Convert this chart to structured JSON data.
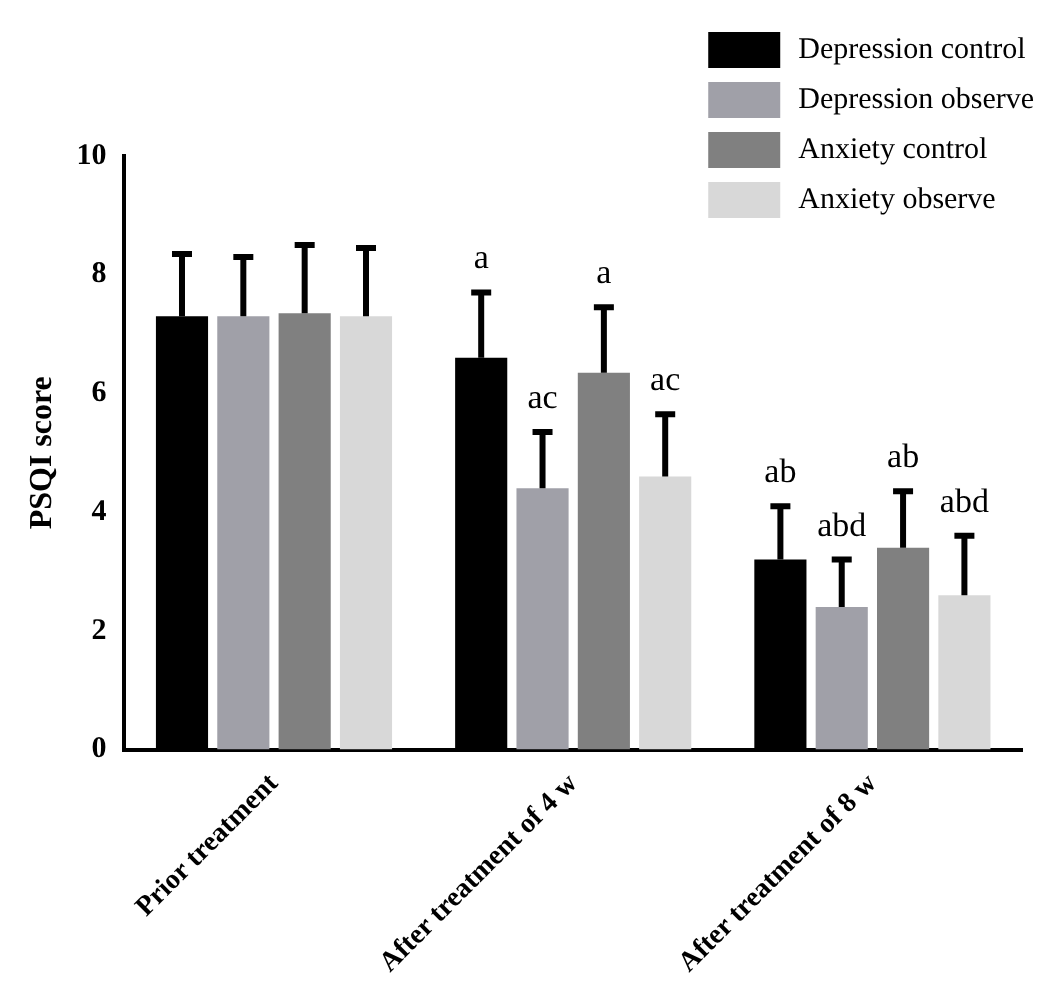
{
  "chart_data": {
    "type": "bar",
    "ylabel": "PSQI score",
    "categories": [
      "Prior treatment",
      "After treatment of 4 w",
      "After treatment of 8 w"
    ],
    "series": [
      {
        "name": "Depression control",
        "color": "#000000",
        "values": [
          7.3,
          6.6,
          3.2
        ],
        "errors": [
          [
            7.3,
            8.35
          ],
          [
            6.6,
            7.7
          ],
          [
            3.2,
            4.1
          ]
        ],
        "value_labels": [
          null,
          "a",
          "ab"
        ]
      },
      {
        "name": "Depression observe",
        "color": "#a0a0a8",
        "values": [
          7.3,
          4.4,
          2.4
        ],
        "errors": [
          [
            7.3,
            8.3
          ],
          [
            4.4,
            5.35
          ],
          [
            2.4,
            3.2
          ]
        ],
        "value_labels": [
          null,
          "ac",
          "abd"
        ]
      },
      {
        "name": "Anxiety control",
        "color": "#808080",
        "values": [
          7.35,
          6.35,
          3.4
        ],
        "errors": [
          [
            7.35,
            8.5
          ],
          [
            6.35,
            7.45
          ],
          [
            3.4,
            4.35
          ]
        ],
        "value_labels": [
          null,
          "a",
          "ab"
        ]
      },
      {
        "name": "Anxiety observe",
        "color": "#d8d8d8",
        "values": [
          7.3,
          4.6,
          2.6
        ],
        "errors": [
          [
            7.3,
            8.45
          ],
          [
            4.6,
            5.65
          ],
          [
            2.6,
            3.6
          ]
        ],
        "value_labels": [
          null,
          "ac",
          "abd"
        ]
      }
    ],
    "ylim": [
      0,
      10
    ],
    "yticks": [
      0,
      2,
      4,
      6,
      8,
      10
    ],
    "grid": false,
    "legend": "top right"
  }
}
